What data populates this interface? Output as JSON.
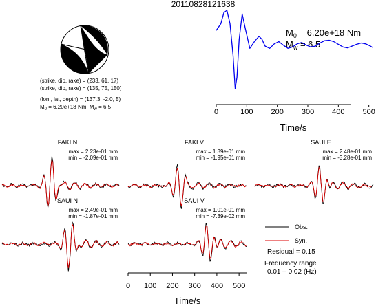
{
  "title": "20110828121638",
  "source_info": {
    "line1": "(strike, dip, rake) = (233, 61, 17)",
    "line2": "(strike, dip, rake) = (135, 75, 150)",
    "line3": "(lon., lat, depth) = (137.3, -2.0, 5)",
    "line4_m0": "M",
    "line4_m0_sub": "0",
    "line4_m0_val": " = 6.20e+18 Nm, M",
    "line4_mw_sub": "w",
    "line4_mw_val": " = 6.5"
  },
  "stf_label": {
    "m0": "M",
    "m0_sub": "0",
    "m0_val": " = 6.20e+18 Nm",
    "mw": "M",
    "mw_sub": "w",
    "mw_val": " = 6.5"
  },
  "legend": {
    "obs": "Obs.",
    "syn": "Syn.",
    "residual": "Residual = 0.15",
    "freq_line1": "Frequency range",
    "freq_line2": "0.01 – 0.02 (Hz)"
  },
  "colors": {
    "stf": "#0000ee",
    "obs": "#000000",
    "syn": "#dd0000",
    "beachball": "#000000"
  },
  "chart_data": [
    {
      "type": "line",
      "name": "source-time-function",
      "xlabel": "Time/s",
      "xlim": [
        0,
        512
      ],
      "xticks": [
        0,
        100,
        200,
        300,
        400,
        500
      ],
      "series": [
        {
          "x": [
            0,
            15,
            25,
            35,
            45,
            55,
            62,
            68,
            75,
            85,
            95,
            110,
            125,
            140,
            150,
            160,
            175,
            190,
            205,
            220,
            235,
            250,
            265,
            280,
            295,
            310,
            325,
            340,
            355,
            370,
            385,
            400,
            415,
            430,
            445,
            460,
            475,
            490,
            505,
            512
          ],
          "y": [
            0.55,
            0.7,
            0.95,
            1.0,
            0.7,
            0.0,
            -0.75,
            -0.5,
            0.35,
            0.92,
            0.6,
            0.15,
            0.3,
            0.42,
            0.35,
            0.2,
            0.15,
            0.25,
            0.3,
            0.22,
            0.15,
            0.18,
            0.25,
            0.28,
            0.22,
            0.18,
            0.2,
            0.27,
            0.32,
            0.33,
            0.3,
            0.24,
            0.18,
            0.16,
            0.2,
            0.24,
            0.27,
            0.25,
            0.2,
            0.17
          ]
        }
      ]
    },
    {
      "type": "line",
      "name": "waveforms",
      "xlabel": "Time/s",
      "xlim": [
        0,
        512
      ],
      "xticks": [
        0,
        100,
        200,
        300,
        400,
        500
      ],
      "panels": [
        {
          "station": "FAKI N",
          "max": "max = 2.23e-01 mm",
          "min": "min = -2.09e-01 mm",
          "seed": 1,
          "center": 0.42,
          "amp": 1.0
        },
        {
          "station": "FAKI V",
          "max": "max = 1.39e-01 mm",
          "min": "min = -1.95e-01 mm",
          "seed": 2,
          "center": 0.43,
          "amp": 0.75
        },
        {
          "station": "SAUI E",
          "max": "max = 2.48e-01 mm",
          "min": "min = -3.28e-01 mm",
          "seed": 3,
          "center": 0.56,
          "amp": 0.85
        },
        {
          "station": "SAUI N",
          "max": "max = 2.49e-01 mm",
          "min": "min = -1.87e-01 mm",
          "seed": 4,
          "center": 0.58,
          "amp": 1.0
        },
        {
          "station": "SAUI V",
          "max": "max = 1.01e-01 mm",
          "min": "min = -7.39e-02 mm",
          "seed": 5,
          "center": 0.68,
          "amp": 0.9
        }
      ]
    }
  ]
}
